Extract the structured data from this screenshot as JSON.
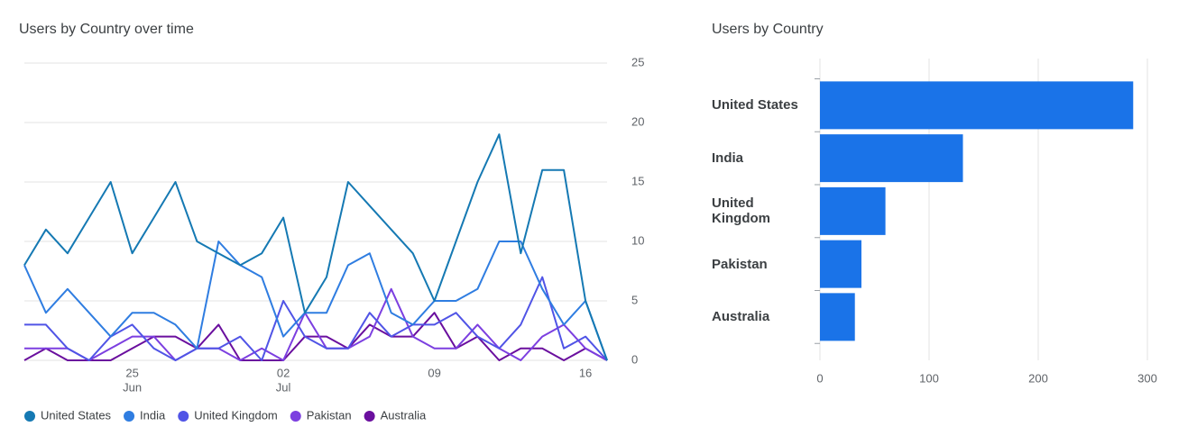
{
  "chart_data": [
    {
      "type": "line",
      "title": "Users by Country over time",
      "categories": [
        null,
        null,
        null,
        null,
        null,
        "25",
        null,
        null,
        null,
        null,
        null,
        null,
        "02",
        null,
        null,
        null,
        null,
        null,
        null,
        "09",
        null,
        null,
        null,
        null,
        null,
        null,
        "16",
        null
      ],
      "month_labels": [
        null,
        null,
        null,
        null,
        null,
        "Jun",
        null,
        null,
        null,
        null,
        null,
        null,
        "Jul",
        null,
        null,
        null,
        null,
        null,
        null,
        null,
        null,
        null,
        null,
        null,
        null,
        null,
        null,
        null
      ],
      "series": [
        {
          "name": "United States",
          "color": "#1579b3",
          "values": [
            8,
            11,
            9,
            12,
            15,
            9,
            12,
            15,
            10,
            9,
            8,
            9,
            12,
            4,
            7,
            15,
            13,
            11,
            9,
            5,
            10,
            15,
            19,
            9,
            16,
            16,
            5,
            0
          ]
        },
        {
          "name": "India",
          "color": "#2f7de1",
          "values": [
            8,
            4,
            6,
            4,
            2,
            4,
            4,
            3,
            1,
            10,
            8,
            7,
            2,
            4,
            4,
            8,
            9,
            4,
            3,
            5,
            5,
            6,
            10,
            10,
            6,
            3,
            5,
            0
          ]
        },
        {
          "name": "United Kingdom",
          "color": "#5054e6",
          "values": [
            3,
            3,
            1,
            0,
            2,
            3,
            1,
            0,
            1,
            1,
            2,
            0,
            5,
            2,
            1,
            1,
            4,
            2,
            3,
            3,
            4,
            2,
            1,
            3,
            7,
            1,
            2,
            0
          ]
        },
        {
          "name": "Pakistan",
          "color": "#7c3fe0",
          "values": [
            1,
            1,
            1,
            0,
            1,
            2,
            2,
            0,
            1,
            1,
            0,
            1,
            0,
            4,
            1,
            1,
            2,
            6,
            2,
            1,
            1,
            3,
            1,
            0,
            2,
            3,
            1,
            0
          ]
        },
        {
          "name": "Australia",
          "color": "#6a0f9e",
          "values": [
            0,
            1,
            0,
            0,
            0,
            1,
            2,
            2,
            1,
            3,
            0,
            0,
            0,
            2,
            2,
            1,
            3,
            2,
            2,
            4,
            1,
            2,
            0,
            1,
            1,
            0,
            1,
            0
          ]
        }
      ],
      "ylim": [
        0,
        25
      ],
      "yticks": [
        0,
        5,
        10,
        15,
        20,
        25
      ],
      "grid": true,
      "y_axis_side": "right",
      "legend_position": "bottom"
    },
    {
      "type": "bar",
      "orientation": "horizontal",
      "title": "Users by Country",
      "categories": [
        "United States",
        "India",
        "United Kingdom",
        "Pakistan",
        "Australia"
      ],
      "values": [
        287,
        131,
        60,
        38,
        32
      ],
      "color": "#1a73e8",
      "xlim": [
        0,
        300
      ],
      "xticks": [
        0,
        100,
        200,
        300
      ],
      "grid": true
    }
  ]
}
